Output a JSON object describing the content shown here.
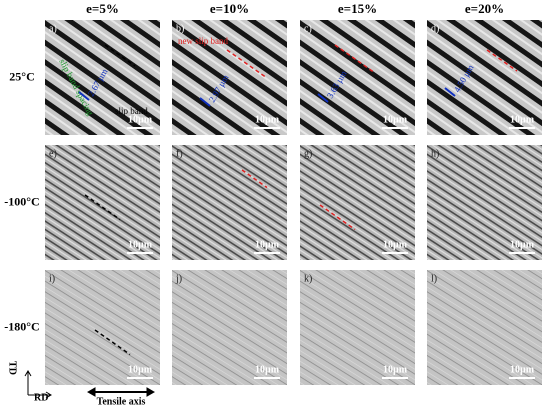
{
  "columns": [
    "e=5%",
    "e=10%",
    "e=15%",
    "e=20%"
  ],
  "rows": [
    "25°C",
    "-100°C",
    "-180°C"
  ],
  "panels": [
    {
      "label": "a)",
      "scale_bar": "10µm",
      "annotations": [
        {
          "text": "slip band spacing",
          "color": "#1a9a2a"
        },
        {
          "text": "2.67 µm",
          "color": "#1030c0"
        },
        {
          "text": "slip band",
          "color": "#000000"
        }
      ]
    },
    {
      "label": "b)",
      "scale_bar": "10µm",
      "annotations": [
        {
          "text": "new slip band",
          "color": "#e02020"
        },
        {
          "text": "2.97 µm",
          "color": "#1030c0"
        }
      ]
    },
    {
      "label": "c)",
      "scale_bar": "10µm",
      "annotations": [
        {
          "text": "3.63 µm",
          "color": "#1030c0"
        }
      ]
    },
    {
      "label": "d)",
      "scale_bar": "10µm",
      "annotations": [
        {
          "text": "4.50 µm",
          "color": "#1030c0"
        }
      ]
    },
    {
      "label": "e)",
      "scale_bar": "10µm",
      "annotations": []
    },
    {
      "label": "f)",
      "scale_bar": "10µm",
      "annotations": []
    },
    {
      "label": "g)",
      "scale_bar": "10µm",
      "annotations": []
    },
    {
      "label": "h)",
      "scale_bar": "10µm",
      "annotations": []
    },
    {
      "label": "i)",
      "scale_bar": "10µm",
      "annotations": []
    },
    {
      "label": "j)",
      "scale_bar": "10µm",
      "annotations": []
    },
    {
      "label": "k)",
      "scale_bar": "10µm",
      "annotations": []
    },
    {
      "label": "l)",
      "scale_bar": "10µm",
      "annotations": []
    }
  ],
  "axes": {
    "vertical": "TD",
    "horizontal": "RD",
    "tensile": "Tensile axis"
  }
}
